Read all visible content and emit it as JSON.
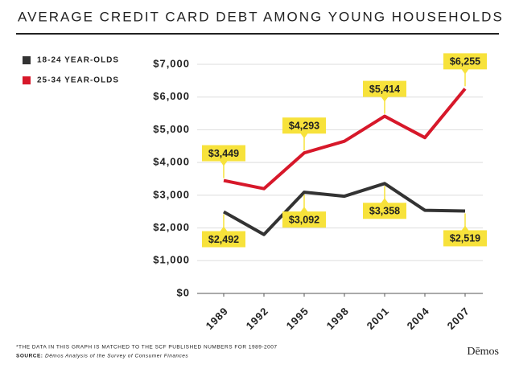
{
  "chart_data": {
    "type": "line",
    "title": "AVERAGE CREDIT CARD DEBT AMONG YOUNG HOUSEHOLDS",
    "categories": [
      "1989",
      "1992",
      "1995",
      "1998",
      "2001",
      "2004",
      "2007"
    ],
    "series": [
      {
        "name": "18-24 YEAR-OLDS",
        "color": "#333333",
        "values": [
          2492,
          1800,
          3092,
          2970,
          3358,
          2540,
          2519
        ],
        "value_labels": [
          "$2,492",
          null,
          "$3,092",
          null,
          "$3,358",
          null,
          "$2,519"
        ]
      },
      {
        "name": "25-34 YEAR-OLDS",
        "color": "#d7182a",
        "values": [
          3449,
          3200,
          4293,
          4650,
          5414,
          4760,
          6255
        ],
        "value_labels": [
          "$3,449",
          null,
          "$4,293",
          null,
          "$5,414",
          null,
          "$6,255"
        ]
      }
    ],
    "ylim": [
      0,
      7000
    ],
    "yticks": [
      {
        "value": 0,
        "label": "$0"
      },
      {
        "value": 1000,
        "label": "$1,000"
      },
      {
        "value": 2000,
        "label": "$2,000"
      },
      {
        "value": 3000,
        "label": "$3,000"
      },
      {
        "value": 4000,
        "label": "$4,000"
      },
      {
        "value": 5000,
        "label": "$5,000"
      },
      {
        "value": 6000,
        "label": "$6,000"
      },
      {
        "value": 7000,
        "label": "$7,000"
      }
    ],
    "grid": true,
    "label_color": "#f7e23b",
    "footnote": "*THE DATA IN THIS GRAPH IS MATCHED TO THE SCF PUBLISHED NUMBERS FOR 1989-2007",
    "source_label": "SOURCE:",
    "source": "Dēmos Analysis of the Survey of Consumer Finances",
    "logo": "Dēmos"
  }
}
